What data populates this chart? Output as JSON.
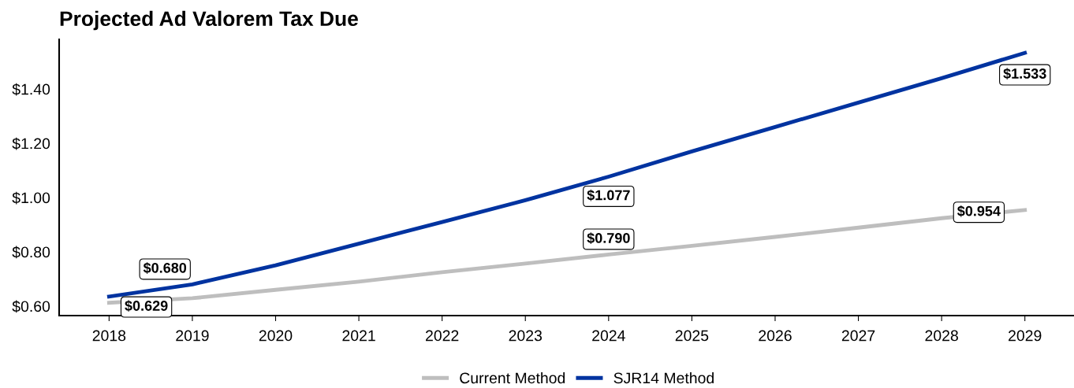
{
  "chart_data": {
    "type": "line",
    "title": "Projected Ad Valorem Tax Due",
    "x": [
      2018,
      2019,
      2020,
      2021,
      2022,
      2023,
      2024,
      2025,
      2026,
      2027,
      2028,
      2029
    ],
    "series": [
      {
        "name": "Current Method",
        "color": "#bebebe",
        "values": [
          0.612,
          0.629,
          0.66,
          0.69,
          0.725,
          0.757,
          0.79,
          0.822,
          0.855,
          0.889,
          0.924,
          0.954
        ],
        "value_labels": [
          null,
          "$0.629",
          null,
          null,
          null,
          null,
          "$0.790",
          null,
          null,
          null,
          null,
          "$0.954"
        ]
      },
      {
        "name": "SJR14 Method",
        "color": "#0033a0",
        "values": [
          0.635,
          0.68,
          0.75,
          0.83,
          0.91,
          0.99,
          1.077,
          1.17,
          1.26,
          1.35,
          1.44,
          1.533
        ],
        "value_labels": [
          null,
          "$0.680",
          null,
          null,
          null,
          null,
          "$1.077",
          null,
          null,
          null,
          null,
          "$1.533"
        ]
      }
    ],
    "xlim": [
      2017.4,
      2029.59
    ],
    "xticks": [
      2018,
      2019,
      2020,
      2021,
      2022,
      2023,
      2024,
      2025,
      2026,
      2027,
      2028,
      2029
    ],
    "ylim": [
      0.565,
      1.583
    ],
    "yticks": [
      {
        "value": 0.6,
        "label": "$0.60"
      },
      {
        "value": 0.8,
        "label": "$0.80"
      },
      {
        "value": 1.0,
        "label": "$1.00"
      },
      {
        "value": 1.2,
        "label": "$1.20"
      },
      {
        "value": 1.4,
        "label": "$1.40"
      }
    ],
    "grid": false,
    "legend": "bottom",
    "marker": "none",
    "line_style": "solid"
  }
}
